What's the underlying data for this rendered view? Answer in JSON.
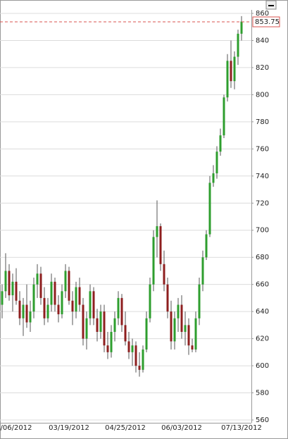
{
  "chart_data": {
    "type": "candlestick",
    "categories": [
      null,
      null,
      null,
      null,
      "/06/2012",
      null,
      null,
      null,
      null,
      null,
      null,
      null,
      null,
      null,
      null,
      null,
      null,
      null,
      null,
      "03/19/2012",
      null,
      null,
      null,
      null,
      null,
      null,
      null,
      null,
      null,
      null,
      null,
      null,
      null,
      null,
      null,
      "04/25/2012",
      null,
      null,
      null,
      null,
      null,
      null,
      null,
      null,
      null,
      null,
      null,
      null,
      null,
      null,
      null,
      "06/03/2012",
      null,
      null,
      null,
      null,
      null,
      null,
      null,
      null,
      null,
      null,
      null,
      null,
      null,
      null,
      null,
      null,
      "07/13/2012"
    ],
    "candles": [
      [
        645,
        660,
        635,
        655
      ],
      [
        655,
        683,
        650,
        670
      ],
      [
        670,
        675,
        648,
        652
      ],
      [
        652,
        668,
        640,
        662
      ],
      [
        662,
        672,
        645,
        648
      ],
      [
        648,
        655,
        630,
        635
      ],
      [
        635,
        650,
        622,
        645
      ],
      [
        645,
        660,
        628,
        632
      ],
      [
        632,
        648,
        625,
        640
      ],
      [
        640,
        665,
        635,
        660
      ],
      [
        660,
        675,
        650,
        668
      ],
      [
        668,
        673,
        645,
        650
      ],
      [
        650,
        658,
        630,
        635
      ],
      [
        635,
        650,
        632,
        645
      ],
      [
        645,
        668,
        640,
        662
      ],
      [
        662,
        665,
        640,
        645
      ],
      [
        645,
        652,
        632,
        638
      ],
      [
        638,
        660,
        635,
        655
      ],
      [
        655,
        675,
        650,
        670
      ],
      [
        670,
        673,
        645,
        648
      ],
      [
        648,
        655,
        630,
        640
      ],
      [
        640,
        662,
        635,
        658
      ],
      [
        658,
        665,
        640,
        645
      ],
      [
        645,
        650,
        615,
        620
      ],
      [
        620,
        640,
        612,
        635
      ],
      [
        635,
        660,
        630,
        655
      ],
      [
        655,
        658,
        630,
        635
      ],
      [
        635,
        642,
        618,
        625
      ],
      [
        625,
        645,
        620,
        640
      ],
      [
        640,
        645,
        610,
        615
      ],
      [
        615,
        625,
        605,
        610
      ],
      [
        610,
        630,
        606,
        625
      ],
      [
        625,
        640,
        618,
        635
      ],
      [
        635,
        655,
        630,
        650
      ],
      [
        650,
        653,
        625,
        630
      ],
      [
        630,
        640,
        615,
        618
      ],
      [
        618,
        625,
        605,
        610
      ],
      [
        610,
        620,
        600,
        615
      ],
      [
        615,
        618,
        595,
        600
      ],
      [
        600,
        610,
        592,
        597
      ],
      [
        597,
        615,
        595,
        612
      ],
      [
        612,
        640,
        610,
        635
      ],
      [
        635,
        665,
        632,
        660
      ],
      [
        660,
        700,
        655,
        695
      ],
      [
        695,
        722,
        680,
        703
      ],
      [
        703,
        705,
        670,
        675
      ],
      [
        675,
        685,
        655,
        660
      ],
      [
        660,
        665,
        635,
        640
      ],
      [
        640,
        648,
        612,
        618
      ],
      [
        618,
        640,
        612,
        635
      ],
      [
        635,
        650,
        625,
        645
      ],
      [
        645,
        652,
        620,
        625
      ],
      [
        625,
        640,
        615,
        630
      ],
      [
        630,
        635,
        608,
        615
      ],
      [
        615,
        620,
        610,
        612
      ],
      [
        612,
        640,
        610,
        635
      ],
      [
        635,
        665,
        630,
        660
      ],
      [
        660,
        685,
        655,
        680
      ],
      [
        680,
        700,
        678,
        697
      ],
      [
        697,
        740,
        695,
        735
      ],
      [
        735,
        748,
        732,
        742
      ],
      [
        742,
        762,
        738,
        758
      ],
      [
        758,
        775,
        755,
        770
      ],
      [
        770,
        800,
        768,
        798
      ],
      [
        798,
        830,
        795,
        825
      ],
      [
        825,
        840,
        805,
        810
      ],
      [
        810,
        832,
        804,
        828
      ],
      [
        828,
        848,
        822,
        845
      ],
      [
        845,
        858,
        840,
        854
      ]
    ],
    "up_color": "#2e9e2e",
    "down_color": "#8e1f1f",
    "ylim": [
      560,
      860
    ],
    "yticks": [
      560,
      580,
      600,
      620,
      640,
      660,
      680,
      700,
      720,
      740,
      760,
      780,
      800,
      820,
      840,
      860
    ],
    "grid": true,
    "reference_line": {
      "value": 853.75,
      "color": "#d9534f"
    }
  }
}
